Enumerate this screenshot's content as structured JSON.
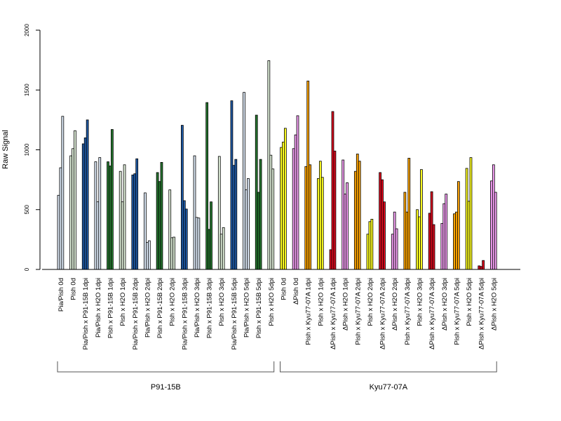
{
  "chart_data": {
    "type": "bar",
    "ylabel": "Raw Signal",
    "ylim": [
      0,
      2000
    ],
    "yticks": [
      0,
      500,
      1000,
      1500,
      2000
    ],
    "grid": false,
    "legend": "none",
    "bars_per_category": 3,
    "categories": [
      "Pia/Pish 0d",
      "Pish 0d",
      "Pia/Pish x P91-15B 1dpi",
      "Pia/Pish x H2O 1dpi",
      "Pish x P91-15B 1dpi",
      "Pish x H2O 1dpi",
      "Pia/Pish x P91-15B 2dpi",
      "Pia/Pish x H2O 2dpi",
      "Pish x P91-15B 2dpi",
      "Pish x H2O 2dpi",
      "Pia/Pish x P91-15B 3dpi",
      "Pia/Pish x H2O 3dpi",
      "Pish x P91-15B 3dpi",
      "Pish x H2O 3dpi",
      "Pia/Pish x P91-15B 5dpi",
      "Pia/Pish x H2O 5dpi",
      "Pish x P91-15B 5dpi",
      "Pish x H2O 5dpi",
      "Pish 0d",
      "ΔPish 0d",
      "Pish x Kyu77-07A 1dpi",
      "Pish x H2O 1dpi",
      "ΔPish x Kyu77-07A 1dpi",
      "ΔPish x H2O 1dpi",
      "Pish x Kyu77-07A 2dpi",
      "Pish x H2O 2dpi",
      "ΔPish x Kyu77-07A 2dpi",
      "ΔPish x H2O 2dpi",
      "Pish x Kyu77-07A 3dpi",
      "Pish x H2O 3dpi",
      "ΔPish x Kyu77-07A 3dpi",
      "ΔPish x H2O 3dpi",
      "Pish x Kyu77-07A 5dpi",
      "Pish x H2O 5dpi",
      "ΔPish x Kyu77-07A 5dpi",
      "ΔPish x H2O 5dpi"
    ],
    "colors": [
      "#dbe7f5",
      "#e2f1dc",
      "#1f5aa6",
      "#dbe7f5",
      "#26762f",
      "#e2f1dc",
      "#1f5aa6",
      "#dbe7f5",
      "#26762f",
      "#e2f1dc",
      "#1f5aa6",
      "#dbe7f5",
      "#26762f",
      "#e2f1dc",
      "#1f5aa6",
      "#dbe7f5",
      "#26762f",
      "#e2f1dc",
      "#ffff22",
      "#f5a0f5",
      "#ffa500",
      "#ffff22",
      "#dd0a1e",
      "#f5a0f5",
      "#ffa500",
      "#ffff22",
      "#dd0a1e",
      "#f5a0f5",
      "#ffa500",
      "#ffff22",
      "#dd0a1e",
      "#f5a0f5",
      "#ffa500",
      "#ffff22",
      "#dd0a1e",
      "#f5a0f5"
    ],
    "values": [
      [
        620,
        850,
        1280
      ],
      [
        950,
        1010,
        1160
      ],
      [
        1050,
        1100,
        1250
      ],
      [
        900,
        565,
        935
      ],
      [
        900,
        865,
        1170
      ],
      [
        820,
        565,
        875
      ],
      [
        790,
        800,
        925
      ],
      [
        640,
        225,
        240
      ],
      [
        810,
        735,
        895
      ],
      [
        665,
        265,
        270
      ],
      [
        1205,
        575,
        505
      ],
      [
        950,
        435,
        430
      ],
      [
        1395,
        335,
        565
      ],
      [
        945,
        295,
        350
      ],
      [
        1410,
        870,
        920
      ],
      [
        1480,
        665,
        760
      ],
      [
        1290,
        645,
        920
      ],
      [
        1745,
        955,
        840
      ],
      [
        1020,
        1065,
        1180
      ],
      [
        1010,
        1125,
        1285
      ],
      [
        860,
        1575,
        875
      ],
      [
        760,
        905,
        770
      ],
      [
        165,
        1320,
        990
      ],
      [
        915,
        630,
        725
      ],
      [
        820,
        965,
        905
      ],
      [
        295,
        400,
        420
      ],
      [
        810,
        750,
        565
      ],
      [
        295,
        480,
        340
      ],
      [
        645,
        480,
        930
      ],
      [
        500,
        440,
        835
      ],
      [
        470,
        650,
        375
      ],
      [
        385,
        550,
        630
      ],
      [
        465,
        480,
        735
      ],
      [
        845,
        570,
        935
      ],
      [
        30,
        25,
        75
      ],
      [
        740,
        875,
        645
      ]
    ],
    "groups": [
      {
        "label": "P91-15B",
        "from": 0,
        "to": 17
      },
      {
        "label": "Kyu77-07A",
        "from": 18,
        "to": 35
      }
    ]
  }
}
